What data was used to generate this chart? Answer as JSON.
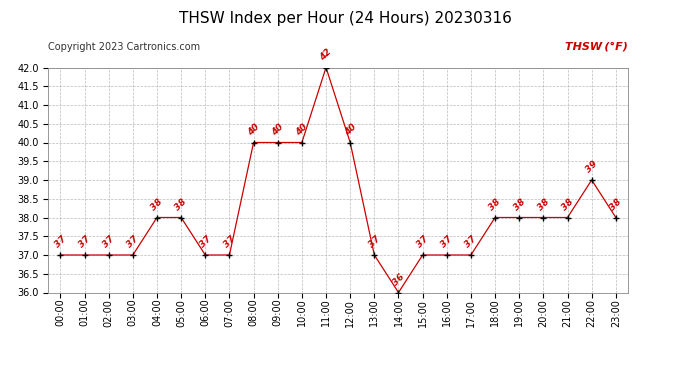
{
  "title": "THSW Index per Hour (24 Hours) 20230316",
  "copyright": "Copyright 2023 Cartronics.com",
  "legend_label": "THSW (°F)",
  "hours": [
    "00:00",
    "01:00",
    "02:00",
    "03:00",
    "04:00",
    "05:00",
    "06:00",
    "07:00",
    "08:00",
    "09:00",
    "10:00",
    "11:00",
    "12:00",
    "13:00",
    "14:00",
    "15:00",
    "16:00",
    "17:00",
    "18:00",
    "19:00",
    "20:00",
    "21:00",
    "22:00",
    "23:00"
  ],
  "values": [
    37,
    37,
    37,
    37,
    38,
    38,
    37,
    37,
    40,
    40,
    40,
    42,
    40,
    37,
    36,
    37,
    37,
    37,
    38,
    38,
    38,
    38,
    39,
    38
  ],
  "line_color": "#cc0000",
  "marker_color": "#000000",
  "label_color": "#cc0000",
  "background_color": "#ffffff",
  "grid_color": "#aaaaaa",
  "ylim": [
    36.0,
    42.0
  ],
  "ytick_interval": 0.5,
  "title_fontsize": 11,
  "label_fontsize": 7,
  "copyright_fontsize": 7,
  "legend_fontsize": 8,
  "data_label_fontsize": 6.5
}
